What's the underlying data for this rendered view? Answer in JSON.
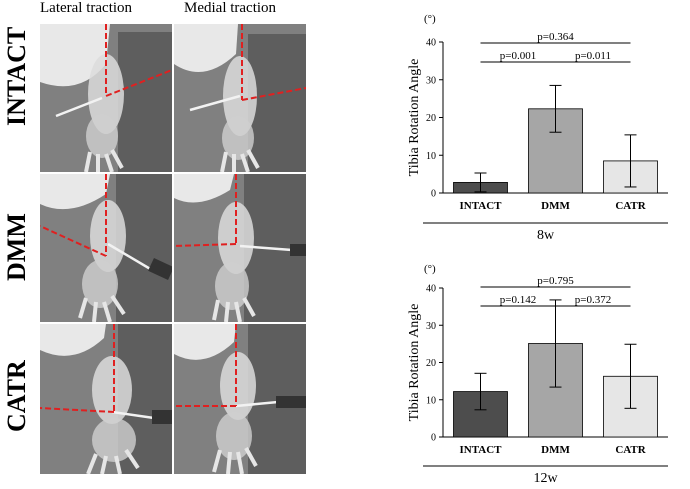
{
  "panel": {
    "column_titles": [
      "Lateral traction",
      "Medial traction"
    ],
    "row_labels": [
      "INTACT",
      "DMM",
      "CATR"
    ]
  },
  "colors": {
    "intact_bar": "#4d4d4d",
    "dmm_bar": "#a6a6a6",
    "catr_bar": "#e6e6e6",
    "guide_line": "#e02020",
    "xray_background": "#7f7f7f"
  },
  "chart_data": [
    {
      "type": "bar",
      "period": "8w",
      "categories": [
        "INTACT",
        "DMM",
        "CATR"
      ],
      "values": [
        2.8,
        22.3,
        8.5
      ],
      "errors": [
        2.5,
        6.2,
        6.9
      ],
      "ylabel": "Tibia Rotation Angle",
      "yunit": "(°)",
      "ylim": [
        0,
        40
      ],
      "yticks": [
        0,
        10,
        20,
        30,
        40
      ],
      "grid": false,
      "comparisons": [
        {
          "from": "INTACT",
          "to": "CATR",
          "label": "p=0.364"
        },
        {
          "from": "INTACT",
          "to": "DMM",
          "label": "p=0.001"
        },
        {
          "from": "DMM",
          "to": "CATR",
          "label": "p=0.011"
        }
      ]
    },
    {
      "type": "bar",
      "period": "12w",
      "categories": [
        "INTACT",
        "DMM",
        "CATR"
      ],
      "values": [
        12.2,
        25.1,
        16.3
      ],
      "errors": [
        4.9,
        11.7,
        8.6
      ],
      "ylabel": "Tibia Rotation Angle",
      "yunit": "(°)",
      "ylim": [
        0,
        40
      ],
      "yticks": [
        0,
        10,
        20,
        30,
        40
      ],
      "grid": false,
      "comparisons": [
        {
          "from": "INTACT",
          "to": "CATR",
          "label": "p=0.795"
        },
        {
          "from": "INTACT",
          "to": "DMM",
          "label": "p=0.142"
        },
        {
          "from": "DMM",
          "to": "CATR",
          "label": "p=0.372"
        }
      ]
    }
  ]
}
